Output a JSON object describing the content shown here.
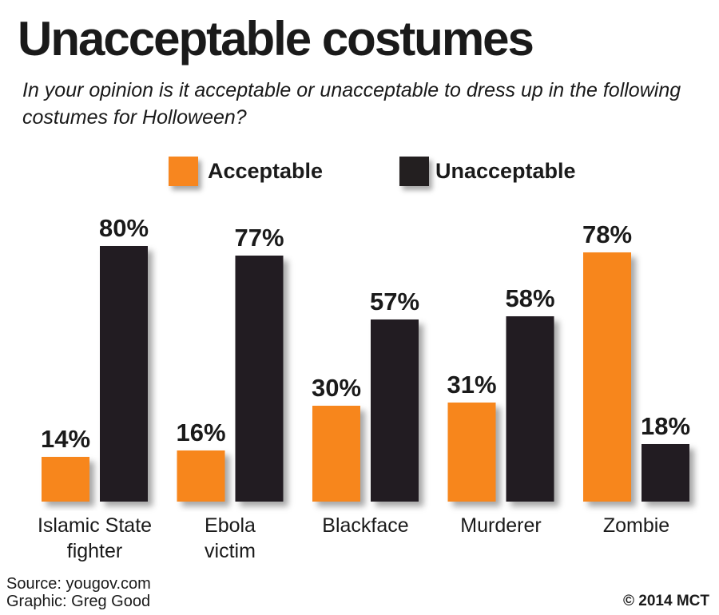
{
  "chart_data": {
    "type": "bar",
    "title": "Unacceptable costumes",
    "subtitle": "In your opinion is it acceptable or unacceptable to dress up in the following costumes for Holloween?",
    "categories": [
      [
        "Islamic State",
        "fighter"
      ],
      [
        "Ebola",
        "victim"
      ],
      [
        "Blackface"
      ],
      [
        "Murderer"
      ],
      [
        "Zombie"
      ]
    ],
    "series": [
      {
        "name": "Acceptable",
        "color": "#f7861f",
        "values": [
          14,
          16,
          30,
          31,
          78
        ],
        "labels": [
          "14%",
          "16%",
          "30%",
          "31%",
          "78%"
        ]
      },
      {
        "name": "Unacceptable",
        "color": "#231f20",
        "values": [
          80,
          77,
          57,
          58,
          18
        ],
        "labels": [
          "80%",
          "77%",
          "57%",
          "58%",
          "18%"
        ]
      }
    ],
    "ylim": [
      0,
      80
    ],
    "grid": false,
    "legend": "top-center"
  },
  "footer": {
    "source": "Source: yougov.com",
    "graphic": "Graphic: Greg Good",
    "copyright": "© 2014 MCT"
  }
}
